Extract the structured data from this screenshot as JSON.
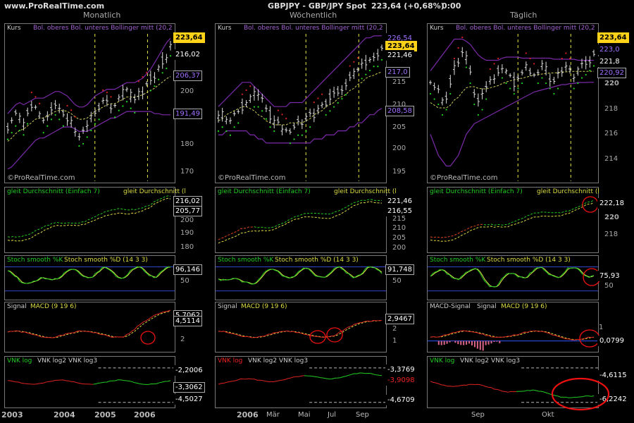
{
  "header": {
    "site": "www.ProRealTime.com",
    "instrument": "GBPJPY - GBP/JPY Spot",
    "quote": "223,64 (+0,68%)",
    "time": "0:00",
    "col_titles": [
      "Monatlich",
      "Wöchentlich",
      "Täglich"
    ]
  },
  "legends": {
    "kurs": "Kurs",
    "bollinger": "Bol. oberes Bol. unteres Bollinger mitt (20,2",
    "ma": "gleit Durchschnitt (Einfach 7)",
    "ma2": "gleit Durchschnitt (l",
    "stoch_k": "Stoch smooth %K",
    "stoch_d": "Stoch smooth %D (14 3 3)",
    "signal": "Signal",
    "macd": "MACD (9 19 6)",
    "macd_signal": "MACD-Signal",
    "vnk_log": "VNK log",
    "vnk_log23": "VNK log2 VNK log3",
    "watermark": "©ProRealTime.com"
  },
  "monthly": {
    "price_ticks": [
      "200",
      "180",
      "170"
    ],
    "price_tags": [
      "223,64",
      "216,02",
      "206,37",
      "191,49"
    ],
    "ma_ticks": [
      "200",
      "190",
      "180"
    ],
    "ma_tags": [
      "216,02",
      "205,77"
    ],
    "stoch_ticks": [
      "50"
    ],
    "stoch_tags": [
      "96,146"
    ],
    "macd_ticks": [
      "2"
    ],
    "macd_tags": [
      "5,7062",
      "4,5114"
    ],
    "vnk_tags": [
      "-2,2006",
      "-3,3062",
      "-4,5027"
    ],
    "x_labels": [
      "2003",
      "2004",
      "2005",
      "2006"
    ]
  },
  "weekly": {
    "price_ticks": [
      "215",
      "210",
      "205",
      "200",
      "195"
    ],
    "price_tags": [
      "226,54",
      "223,64",
      "221,46",
      "217,0",
      "208,58"
    ],
    "ma_ticks": [
      "215",
      "210",
      "205",
      "200"
    ],
    "ma_tags": [
      "221,46",
      "216,55"
    ],
    "stoch_ticks": [
      "50"
    ],
    "stoch_tags": [
      "91,748"
    ],
    "macd_ticks": [
      "2",
      "1"
    ],
    "macd_tags": [
      "2,9467"
    ],
    "vnk_tags": [
      "-3,3769",
      "-3,9098",
      "-4,6709"
    ],
    "x_labels": [
      "2006",
      "Mär",
      "Mai",
      "Jul",
      "Sep"
    ]
  },
  "daily": {
    "price_ticks": [
      "220",
      "218",
      "216",
      "214"
    ],
    "price_tags": [
      "223,64",
      "223,0",
      "221,8",
      "220,92"
    ],
    "ma_ticks": [
      "220",
      "218"
    ],
    "ma_tags": [
      "222,18"
    ],
    "stoch_ticks": [
      "50"
    ],
    "stoch_tags": [
      "75,93"
    ],
    "macd_ticks": [
      "1"
    ],
    "macd_tags": [
      "0,0799"
    ],
    "vnk_tags": [
      "-4,6115",
      "-6,2242"
    ],
    "x_labels": [
      "Sep",
      "Okt"
    ]
  },
  "colors": {
    "price": "#dddddd",
    "bollinger": "#7a2aa8",
    "sar_up": "#22dd22",
    "sar_down": "#dd2222",
    "ma_fast": "#22cc22",
    "ma_slow": "#dddd44",
    "ma_red": "#dd2222",
    "stoch_k": "#22cc22",
    "stoch_d": "#dddd44",
    "stoch_band": "#3344cc",
    "macd": "#dd2222",
    "signal": "#dddd44",
    "vnk_red": "#dd2222",
    "vnk_green": "#22cc22",
    "highlight": "#ffd21a",
    "annotation": "#ee1111",
    "vline": "#e6e64a"
  },
  "chart_data": [
    {
      "type": "line",
      "title": "GBPJPY Monatlich",
      "ylabel": "Kurs",
      "ylim": [
        166,
        228
      ],
      "series": [
        {
          "name": "Kurs",
          "values": [
            186,
            189,
            192,
            190,
            188,
            193,
            196,
            194,
            191,
            189,
            192,
            195,
            197,
            195,
            192,
            190,
            188,
            185,
            183,
            184,
            187,
            190,
            193,
            195,
            197,
            196,
            194,
            196,
            199,
            201,
            203,
            200,
            198,
            201,
            203,
            205,
            208,
            210,
            213,
            216,
            218,
            223.64
          ]
        },
        {
          "name": "Bol. oberes",
          "values": [
            192,
            194,
            196,
            197,
            196,
            197,
            198,
            199,
            199,
            199,
            200,
            201,
            202,
            202,
            201,
            200,
            198,
            196,
            195,
            195,
            196,
            198,
            200,
            201,
            202,
            203,
            203,
            203,
            204,
            205,
            206,
            206,
            206,
            207,
            208,
            210,
            212,
            215,
            218,
            221,
            224,
            226
          ]
        },
        {
          "name": "Bol. unteres",
          "values": [
            167,
            168,
            170,
            172,
            174,
            176,
            178,
            180,
            181,
            181,
            182,
            183,
            184,
            185,
            186,
            186,
            186,
            185,
            184,
            184,
            184,
            185,
            186,
            187,
            188,
            189,
            190,
            190,
            191,
            192,
            193,
            193,
            193,
            193,
            193,
            193,
            193,
            192,
            192,
            191.49,
            191.5,
            191.49
          ]
        }
      ]
    },
    {
      "type": "line",
      "title": "GBPJPY Wöchentlich",
      "ylabel": "Kurs",
      "ylim": [
        193,
        227
      ],
      "series": [
        {
          "name": "Kurs",
          "values": [
            206,
            207,
            206,
            205,
            207,
            208,
            209,
            210,
            211,
            212,
            212,
            211,
            209,
            207,
            206,
            205,
            204,
            203,
            203,
            204,
            205,
            205,
            206,
            207,
            207,
            208,
            209,
            210,
            211,
            212,
            213,
            214,
            215,
            216,
            217,
            218,
            219,
            220,
            221,
            222,
            222,
            223.64
          ]
        },
        {
          "name": "Bol. oberes",
          "values": [
            209,
            210,
            211,
            212,
            213,
            214,
            215,
            215,
            215,
            214,
            213,
            212,
            211,
            210,
            209,
            209,
            209,
            209,
            210,
            210,
            210,
            210,
            211,
            212,
            213,
            214,
            215,
            216,
            217,
            218,
            219,
            220,
            221,
            222,
            223,
            224,
            225,
            226,
            226,
            226.5,
            226.5,
            226.54
          ]
        },
        {
          "name": "Bol. unteres",
          "values": [
            202,
            202,
            203,
            203,
            203,
            203,
            203,
            203,
            202,
            202,
            201,
            201,
            200,
            200,
            200,
            200,
            200,
            200,
            200,
            200,
            200,
            200,
            200,
            200,
            201,
            201,
            201,
            202,
            202,
            202,
            203,
            203,
            203,
            204,
            204,
            205,
            205,
            206,
            207,
            207,
            208,
            208.58
          ]
        }
      ]
    },
    {
      "type": "line",
      "title": "GBPJPY Täglich",
      "ylabel": "Kurs",
      "ylim": [
        212.5,
        225.5
      ],
      "series": [
        {
          "name": "Kurs",
          "values": [
            221,
            220.5,
            220,
            219,
            219.5,
            221,
            222,
            223,
            224,
            223.5,
            222,
            220,
            219,
            219.5,
            220.5,
            221,
            221.5,
            222,
            222.5,
            222,
            221.5,
            221,
            221.5,
            222,
            222.5,
            222,
            221.5,
            222,
            222.5,
            222,
            221.5,
            221,
            221.5,
            222,
            222.5,
            222,
            221.5,
            222,
            222.5,
            222.8,
            223.2,
            223.64
          ]
        },
        {
          "name": "Bol. oberes",
          "values": [
            222,
            222.5,
            223,
            223.5,
            224,
            224.5,
            225,
            225,
            225,
            224.8,
            224.5,
            224,
            223.5,
            223.2,
            223,
            223,
            223,
            223,
            223.2,
            223.3,
            223.3,
            223.3,
            223.3,
            223.2,
            223.2,
            223.2,
            223.2,
            223.2,
            223.2,
            223.2,
            223.2,
            223.1,
            223.1,
            223.1,
            223.1,
            223.1,
            223.1,
            223,
            223,
            223,
            223,
            223
          ]
        },
        {
          "name": "Bol. unteres",
          "values": [
            216,
            215,
            214,
            213.5,
            213,
            213,
            213.5,
            214,
            215,
            216,
            216.5,
            217,
            217.2,
            217.4,
            217.6,
            217.8,
            218,
            218.2,
            218.4,
            218.6,
            218.8,
            219,
            219.2,
            219.4,
            219.6,
            219.8,
            220,
            220.1,
            220.2,
            220.3,
            220.4,
            220.5,
            220.6,
            220.7,
            220.7,
            220.8,
            220.8,
            220.9,
            220.9,
            220.9,
            220.92,
            220.92
          ]
        }
      ]
    }
  ]
}
